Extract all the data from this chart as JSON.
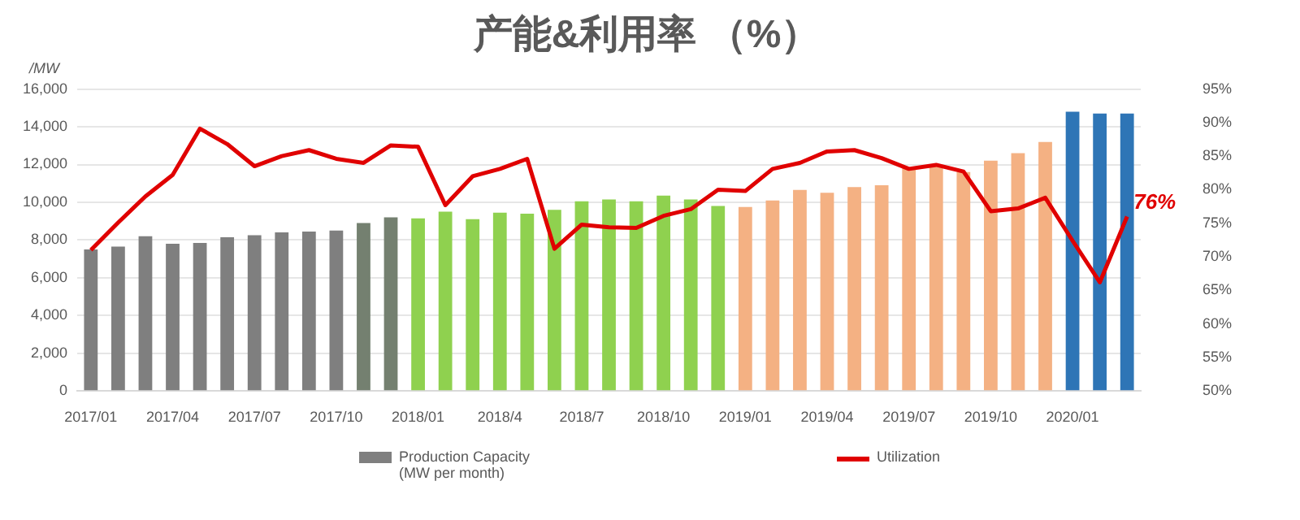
{
  "chart_data": {
    "type": "bar",
    "title": "产能&利用率 （%）",
    "ylabel": "/MW",
    "categories": [
      "2017/01",
      null,
      null,
      "2017/04",
      null,
      null,
      "2017/07",
      null,
      null,
      "2017/10",
      null,
      null,
      "2018/01",
      null,
      null,
      "2018/4",
      null,
      null,
      "2018/7",
      null,
      null,
      "2018/10",
      null,
      null,
      "2019/01",
      null,
      null,
      "2019/04",
      null,
      null,
      "2019/07",
      null,
      null,
      "2019/10",
      null,
      null,
      "2020/01",
      null,
      null
    ],
    "series": [
      {
        "name": "Production Capacity (MW per month)",
        "color": "#7f7f7f",
        "colors": [
          "#7f7f7f",
          "#7f7f7f",
          "#7f7f7f",
          "#7f7f7f",
          "#7f7f7f",
          "#7f7f7f",
          "#7f7f7f",
          "#7f7f7f",
          "#7f7f7f",
          "#7f7f7f",
          "#748070",
          "#748070",
          "#8fd14f",
          "#8fd14f",
          "#8fd14f",
          "#8fd14f",
          "#8fd14f",
          "#8fd14f",
          "#8fd14f",
          "#8fd14f",
          "#8fd14f",
          "#8fd14f",
          "#8fd14f",
          "#8fd14f",
          "#f4b183",
          "#f4b183",
          "#f4b183",
          "#f4b183",
          "#f4b183",
          "#f4b183",
          "#f4b183",
          "#f4b183",
          "#f4b183",
          "#f4b183",
          "#f4b183",
          "#f4b183",
          "#2e75b6",
          "#2e75b6",
          "#2e75b6"
        ],
        "values": [
          7500,
          7650,
          8200,
          7800,
          7850,
          8150,
          8250,
          8400,
          8450,
          8500,
          8900,
          9200,
          9150,
          9500,
          9100,
          9450,
          9400,
          9600,
          10050,
          10150,
          10050,
          10350,
          10150,
          9800,
          9750,
          10100,
          10650,
          10500,
          10800,
          10900,
          11850,
          11900,
          11600,
          12200,
          12600,
          13200,
          14800,
          14700,
          14700
        ]
      },
      {
        "name": "Utilization",
        "type": "line",
        "axis": "y2",
        "color": "#e00000",
        "values": [
          71,
          75.1,
          79,
          82.2,
          89.1,
          86.8,
          83.5,
          85,
          85.9,
          84.6,
          84,
          86.6,
          86.4,
          77.7,
          82,
          83.1,
          84.6,
          71.2,
          74.8,
          74.4,
          74.3,
          76.1,
          77.1,
          80,
          79.8,
          83.1,
          84,
          85.7,
          85.9,
          84.7,
          83.1,
          83.7,
          82.7,
          76.8,
          77.2,
          78.8,
          72.4,
          66.2,
          76
        ],
        "value_labels": [
          null,
          null,
          null,
          null,
          null,
          null,
          null,
          null,
          null,
          null,
          null,
          null,
          null,
          null,
          null,
          null,
          null,
          null,
          null,
          null,
          null,
          null,
          null,
          null,
          null,
          null,
          null,
          null,
          null,
          null,
          null,
          null,
          null,
          null,
          null,
          null,
          null,
          null,
          "76%"
        ]
      }
    ],
    "ylim": [
      0,
      16000
    ],
    "yticks": [
      0,
      {
        "value": 2000,
        "label": "2,000"
      },
      {
        "value": 4000,
        "label": "4,000"
      },
      {
        "value": 6000,
        "label": "6,000"
      },
      {
        "value": 8000,
        "label": "8,000"
      },
      {
        "value": 10000,
        "label": "10,000"
      },
      {
        "value": 12000,
        "label": "12,000"
      },
      {
        "value": 14000,
        "label": "14,000"
      },
      {
        "value": 16000,
        "label": "16,000"
      }
    ],
    "y2lim": [
      50,
      95
    ],
    "y2ticks": [
      {
        "value": 50,
        "label": "50%"
      },
      {
        "value": 55,
        "label": "55%"
      },
      {
        "value": 60,
        "label": "60%"
      },
      {
        "value": 65,
        "label": "65%"
      },
      {
        "value": 70,
        "label": "70%"
      },
      {
        "value": 75,
        "label": "75%"
      },
      {
        "value": 80,
        "label": "80%"
      },
      {
        "value": 85,
        "label": "85%"
      },
      {
        "value": 90,
        "label": "90%"
      },
      {
        "value": 95,
        "label": "95%"
      }
    ],
    "grid": "y",
    "legend": "bottom"
  }
}
